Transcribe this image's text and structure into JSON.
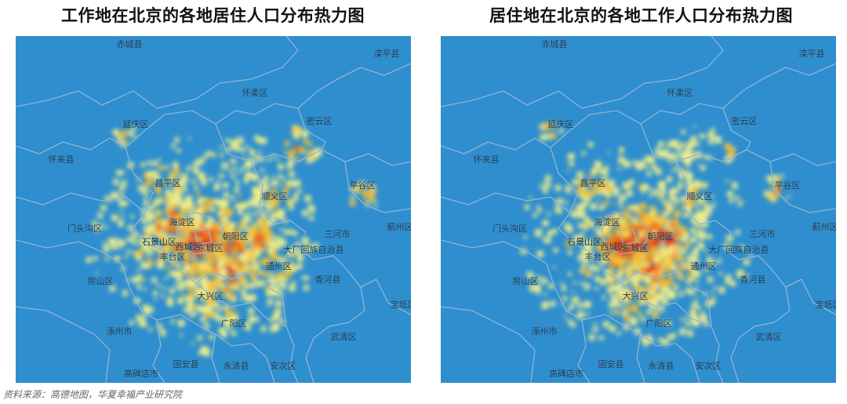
{
  "maps": [
    {
      "title": "工作地在北京的各地居住人口分布热力图",
      "places": [
        "赤城县",
        "滦平县",
        "怀柔区",
        "延庆区",
        "密云区",
        "怀来县",
        "昌平区",
        "平谷区",
        "顺义区",
        "海淀区",
        "门头沟区",
        "朝阳区",
        "三河市",
        "蓟州区",
        "石景山区",
        "西城区",
        "东城区",
        "大厂回族自治县",
        "丰台区",
        "通州区",
        "香河县",
        "房山区",
        "大兴区",
        "宝坻区",
        "涿州市",
        "广阳区",
        "武清区",
        "固安县",
        "高碑店市",
        "永清县",
        "安次区"
      ]
    },
    {
      "title": "居住地在北京的各地工作人口分布热力图",
      "places": [
        "赤城县",
        "滦平县",
        "怀柔区",
        "延庆区",
        "密云区",
        "怀来县",
        "昌平区",
        "平谷区",
        "顺义区",
        "海淀区",
        "门头沟区",
        "朝阳区",
        "三河市",
        "蓟州区",
        "石景山区",
        "西城区",
        "东城区",
        "大厂回族自治县",
        "丰台区",
        "通州区",
        "香河县",
        "房山区",
        "大兴区",
        "宝坻区",
        "涿州市",
        "广阳区",
        "武清区",
        "固安县",
        "高碑店市",
        "永清县",
        "安次区"
      ]
    }
  ],
  "colors": {
    "background": "#2e8ece",
    "border": "#8fb4d6",
    "heat_low": "#f3f08a",
    "heat_mid": "#f5c031",
    "heat_high": "#f06b18",
    "heat_max": "#e0201a"
  },
  "source": "资料来源：高德地图，华夏幸福产业研究院"
}
